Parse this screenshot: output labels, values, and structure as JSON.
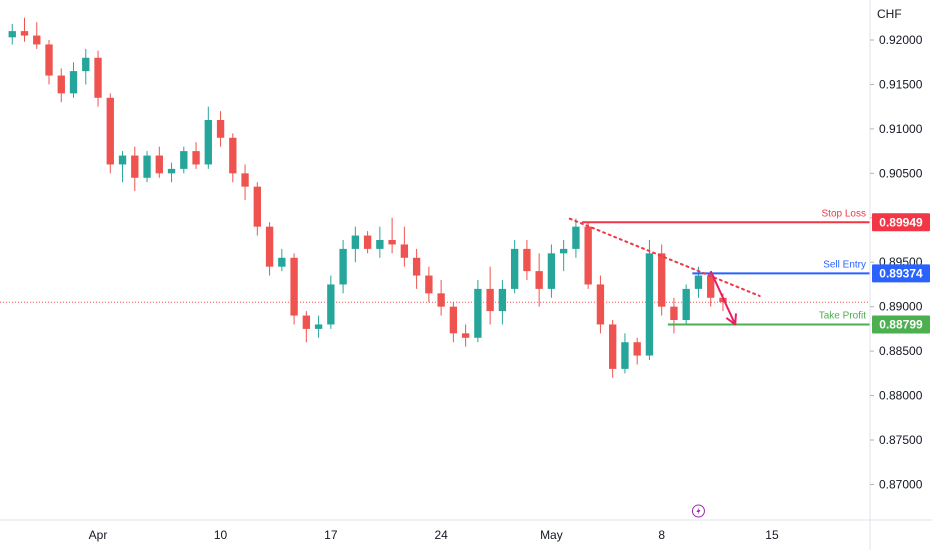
{
  "chart_data": {
    "type": "candlestick",
    "currency": "CHF",
    "ylim": [
      0.866,
      0.9245
    ],
    "xlim": [
      -3,
      68
    ],
    "y_ticks": [
      "0.92000",
      "0.91500",
      "0.91000",
      "0.90500",
      "0.90000",
      "0.89500",
      "0.89000",
      "0.88500",
      "0.88000",
      "0.87500",
      "0.87000"
    ],
    "x_ticks": [
      {
        "label": "Apr",
        "x": 5
      },
      {
        "label": "10",
        "x": 15
      },
      {
        "label": "17",
        "x": 24
      },
      {
        "label": "24",
        "x": 33
      },
      {
        "label": "May",
        "x": 42
      },
      {
        "label": "8",
        "x": 51
      },
      {
        "label": "15",
        "x": 60
      }
    ],
    "colors": {
      "up": "#26a69a",
      "down": "#ef5350",
      "stop": "#f23645",
      "entry": "#2962ff",
      "profit": "#4caf50",
      "arrow": "#e91e63",
      "current": "#ef5350"
    },
    "current_price": 0.8905,
    "levels": {
      "stop": {
        "label": "Stop Loss",
        "value": "0.89949",
        "price": 0.89949,
        "x_start": 44.5
      },
      "entry": {
        "label": "Sell Entry",
        "value": "0.89374",
        "price": 0.89374,
        "x_start": 53.5
      },
      "profit": {
        "label": "Take Profit",
        "value": "0.88799",
        "price": 0.88799,
        "x_start": 51.5
      }
    },
    "trendline": {
      "x1": 43.5,
      "y1": 0.8999,
      "x2": 59,
      "y2": 0.8912
    },
    "forecast_arrow": {
      "x1": 55,
      "y1": 0.894,
      "x2": 57,
      "y2": 0.888
    },
    "candles": [
      [
        -2,
        0.9203,
        0.9218,
        0.9195,
        0.921
      ],
      [
        -1,
        0.921,
        0.9225,
        0.9198,
        0.9205
      ],
      [
        0,
        0.9205,
        0.922,
        0.919,
        0.9195
      ],
      [
        1,
        0.9195,
        0.92,
        0.915,
        0.916
      ],
      [
        2,
        0.916,
        0.9168,
        0.913,
        0.914
      ],
      [
        3,
        0.914,
        0.9175,
        0.9135,
        0.9165
      ],
      [
        4,
        0.9165,
        0.919,
        0.915,
        0.918
      ],
      [
        5,
        0.918,
        0.9188,
        0.9125,
        0.9135
      ],
      [
        6,
        0.9135,
        0.914,
        0.905,
        0.906
      ],
      [
        7,
        0.906,
        0.9075,
        0.904,
        0.907
      ],
      [
        8,
        0.907,
        0.908,
        0.903,
        0.9045
      ],
      [
        9,
        0.9045,
        0.9075,
        0.904,
        0.907
      ],
      [
        10,
        0.907,
        0.908,
        0.9045,
        0.905
      ],
      [
        11,
        0.905,
        0.9062,
        0.904,
        0.9055
      ],
      [
        12,
        0.9055,
        0.908,
        0.905,
        0.9075
      ],
      [
        13,
        0.9075,
        0.9085,
        0.9055,
        0.906
      ],
      [
        14,
        0.906,
        0.9125,
        0.9055,
        0.911
      ],
      [
        15,
        0.911,
        0.912,
        0.908,
        0.909
      ],
      [
        16,
        0.909,
        0.9095,
        0.904,
        0.905
      ],
      [
        17,
        0.905,
        0.906,
        0.902,
        0.9035
      ],
      [
        18,
        0.9035,
        0.904,
        0.898,
        0.899
      ],
      [
        19,
        0.899,
        0.8995,
        0.8935,
        0.8945
      ],
      [
        20,
        0.8945,
        0.8965,
        0.894,
        0.8955
      ],
      [
        21,
        0.8955,
        0.896,
        0.888,
        0.889
      ],
      [
        22,
        0.889,
        0.8895,
        0.886,
        0.8875
      ],
      [
        23,
        0.8875,
        0.889,
        0.8865,
        0.888
      ],
      [
        24,
        0.888,
        0.8935,
        0.8875,
        0.8925
      ],
      [
        25,
        0.8925,
        0.8975,
        0.8915,
        0.8965
      ],
      [
        26,
        0.8965,
        0.899,
        0.895,
        0.898
      ],
      [
        27,
        0.898,
        0.8985,
        0.896,
        0.8965
      ],
      [
        28,
        0.8965,
        0.899,
        0.8955,
        0.8975
      ],
      [
        29,
        0.8975,
        0.9,
        0.896,
        0.897
      ],
      [
        30,
        0.897,
        0.899,
        0.8945,
        0.8955
      ],
      [
        31,
        0.8955,
        0.8965,
        0.892,
        0.8935
      ],
      [
        32,
        0.8935,
        0.8945,
        0.8905,
        0.8915
      ],
      [
        33,
        0.8915,
        0.893,
        0.889,
        0.89
      ],
      [
        34,
        0.89,
        0.8905,
        0.886,
        0.887
      ],
      [
        35,
        0.887,
        0.888,
        0.8855,
        0.8865
      ],
      [
        36,
        0.8865,
        0.893,
        0.886,
        0.892
      ],
      [
        37,
        0.892,
        0.8945,
        0.888,
        0.8895
      ],
      [
        38,
        0.8895,
        0.893,
        0.888,
        0.892
      ],
      [
        39,
        0.892,
        0.8975,
        0.8915,
        0.8965
      ],
      [
        40,
        0.8965,
        0.8975,
        0.893,
        0.894
      ],
      [
        41,
        0.894,
        0.896,
        0.89,
        0.892
      ],
      [
        42,
        0.892,
        0.897,
        0.891,
        0.896
      ],
      [
        43,
        0.896,
        0.8975,
        0.894,
        0.8965
      ],
      [
        44,
        0.8965,
        0.8999,
        0.8955,
        0.899
      ],
      [
        45,
        0.899,
        0.8995,
        0.892,
        0.8925
      ],
      [
        46,
        0.8925,
        0.8935,
        0.887,
        0.888
      ],
      [
        47,
        0.888,
        0.8885,
        0.882,
        0.883
      ],
      [
        48,
        0.883,
        0.887,
        0.8825,
        0.886
      ],
      [
        49,
        0.886,
        0.8865,
        0.8835,
        0.8845
      ],
      [
        50,
        0.8845,
        0.8975,
        0.884,
        0.896
      ],
      [
        51,
        0.896,
        0.897,
        0.889,
        0.89
      ],
      [
        52,
        0.89,
        0.891,
        0.887,
        0.8885
      ],
      [
        53,
        0.8885,
        0.8925,
        0.888,
        0.892
      ],
      [
        54,
        0.892,
        0.8945,
        0.891,
        0.8935
      ],
      [
        55,
        0.8935,
        0.894,
        0.89,
        0.891
      ],
      [
        56,
        0.891,
        0.8915,
        0.8895,
        0.8905
      ]
    ]
  }
}
